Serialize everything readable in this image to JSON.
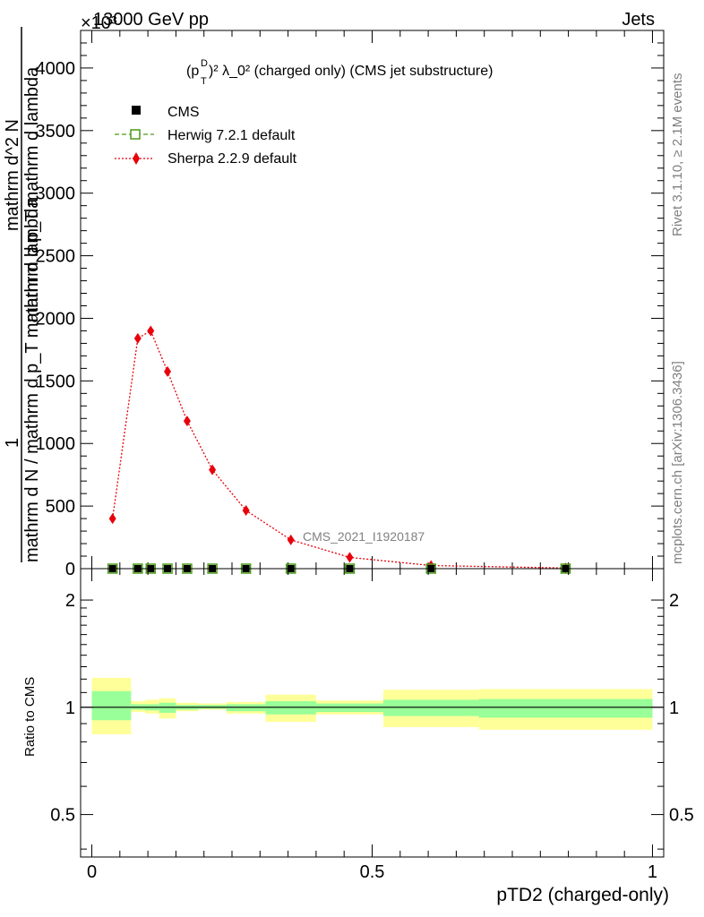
{
  "header": {
    "energy_label": "13000 GeV pp",
    "category_label": "Jets",
    "exponent_label": "×10³"
  },
  "side_labels": {
    "rivet": "Rivet 3.1.10, ≥ 2.1M events",
    "mcplots": "mcplots.cern.ch [arXiv:1306.3436]"
  },
  "plot_title": {
    "main": "(p",
    "sup_d": "D",
    "sub_t": "T",
    "rest": ")² λ_0² (charged only) (CMS jet substructure)"
  },
  "watermark": "CMS_2021_I1920187",
  "axes": {
    "ylabel_top_one": "1",
    "ylabel_line1": "mathrm d N / mathrm d p_T mathrm d lambda",
    "ylabel_line2": "mathrm d^2 N",
    "ylabel_line2_b": "mathrm d p_T mathrm d lambda",
    "ylabel_ratio": "Ratio to CMS",
    "xlabel": "pTD2 (charged-only)"
  },
  "legend": [
    {
      "label": "CMS",
      "color": "#000000",
      "marker": "filled-square"
    },
    {
      "label": "Herwig 7.2.1 default",
      "color": "#4a9a1a",
      "marker": "open-square"
    },
    {
      "label": "Sherpa 2.2.9 default",
      "color": "#e8000b",
      "marker": "diamond"
    }
  ],
  "chart_data": [
    {
      "type": "line",
      "panel": "main",
      "xlim": [
        -0.02,
        1.02
      ],
      "ylim": [
        0,
        4300
      ],
      "y_scale_note": "×10³",
      "x_ticks": [
        "0",
        "0.5",
        "1"
      ],
      "y_ticks": [
        "0",
        "500",
        "1000",
        "1500",
        "2000",
        "2500",
        "3000",
        "3500",
        "4000"
      ],
      "series": [
        {
          "name": "CMS",
          "x": [
            0.037,
            0.082,
            0.105,
            0.135,
            0.17,
            0.215,
            0.275,
            0.355,
            0.46,
            0.605,
            0.845
          ],
          "y": [
            0,
            0,
            0,
            0,
            0,
            0,
            0,
            0,
            0,
            0,
            0
          ]
        },
        {
          "name": "Herwig 7.2.1 default",
          "x": [
            0.037,
            0.082,
            0.105,
            0.135,
            0.17,
            0.215,
            0.275,
            0.355,
            0.46,
            0.605,
            0.845
          ],
          "y": [
            0,
            0,
            0,
            0,
            0,
            0,
            0,
            0,
            0,
            0,
            0
          ]
        },
        {
          "name": "Sherpa 2.2.9 default",
          "x": [
            0.037,
            0.082,
            0.105,
            0.135,
            0.17,
            0.215,
            0.275,
            0.355,
            0.46,
            0.605,
            0.845
          ],
          "y": [
            400,
            1840,
            1900,
            1575,
            1180,
            790,
            465,
            230,
            90,
            25,
            5
          ]
        }
      ]
    },
    {
      "type": "area",
      "panel": "ratio",
      "xlim": [
        -0.02,
        1.02
      ],
      "ylim": [
        0.38,
        2.45
      ],
      "y_scale": "log",
      "y_ticks": [
        "0.5",
        "1",
        "2"
      ],
      "reference_line": 1,
      "bands": [
        {
          "x_low": 0.0,
          "x_high": 0.07,
          "inner": [
            0.92,
            1.11
          ],
          "outer": [
            0.84,
            1.21
          ]
        },
        {
          "x_low": 0.07,
          "x_high": 0.095,
          "inner": [
            0.985,
            1.02
          ],
          "outer": [
            0.97,
            1.04
          ]
        },
        {
          "x_low": 0.095,
          "x_high": 0.12,
          "inner": [
            0.98,
            1.02
          ],
          "outer": [
            0.96,
            1.05
          ]
        },
        {
          "x_low": 0.12,
          "x_high": 0.15,
          "inner": [
            0.965,
            1.03
          ],
          "outer": [
            0.93,
            1.06
          ]
        },
        {
          "x_low": 0.15,
          "x_high": 0.19,
          "inner": [
            0.985,
            1.015
          ],
          "outer": [
            0.975,
            1.03
          ]
        },
        {
          "x_low": 0.19,
          "x_high": 0.24,
          "inner": [
            0.99,
            1.015
          ],
          "outer": [
            0.985,
            1.025
          ]
        },
        {
          "x_low": 0.24,
          "x_high": 0.31,
          "inner": [
            0.975,
            1.02
          ],
          "outer": [
            0.96,
            1.035
          ]
        },
        {
          "x_low": 0.31,
          "x_high": 0.4,
          "inner": [
            0.955,
            1.04
          ],
          "outer": [
            0.91,
            1.085
          ]
        },
        {
          "x_low": 0.4,
          "x_high": 0.52,
          "inner": [
            0.97,
            1.025
          ],
          "outer": [
            0.955,
            1.045
          ]
        },
        {
          "x_low": 0.52,
          "x_high": 0.69,
          "inner": [
            0.945,
            1.05
          ],
          "outer": [
            0.88,
            1.12
          ]
        },
        {
          "x_low": 0.69,
          "x_high": 1.0,
          "inner": [
            0.935,
            1.055
          ],
          "outer": [
            0.865,
            1.125
          ]
        }
      ]
    }
  ]
}
